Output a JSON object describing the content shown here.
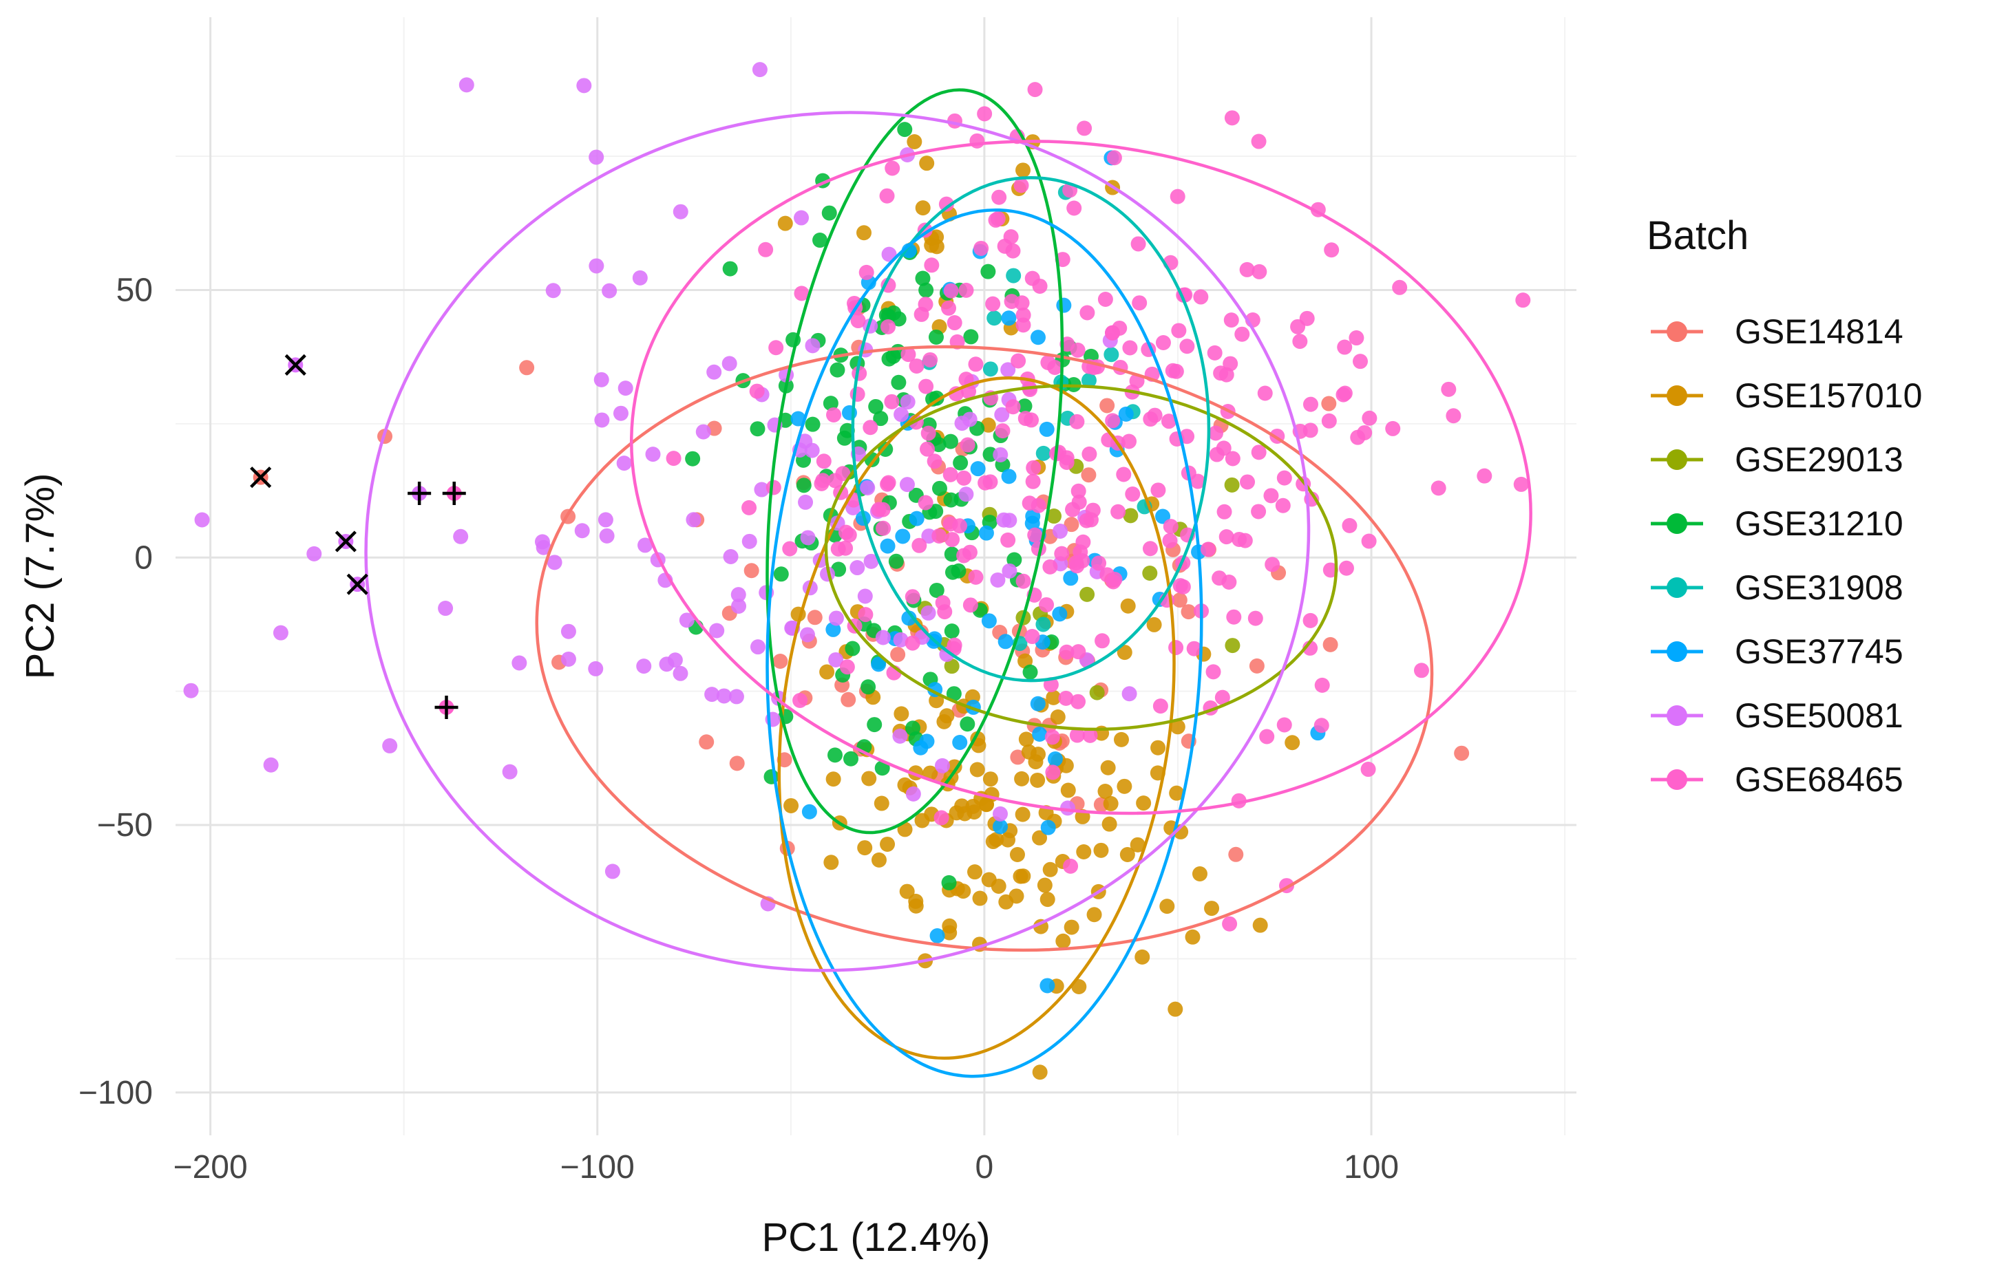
{
  "chart_data": {
    "type": "scatter",
    "title": "",
    "xlabel": "PC1 (12.4%)",
    "ylabel": "PC2 (7.7%)",
    "xlim": [
      -209,
      153
    ],
    "ylim": [
      -108,
      101
    ],
    "x_ticks": {
      "values": [
        -200,
        -100,
        0,
        100
      ],
      "labels": [
        "−200",
        "−100",
        "0",
        "100"
      ]
    },
    "y_ticks": {
      "values": [
        50,
        0,
        -50,
        -100
      ],
      "labels": [
        "50",
        "0",
        "−50",
        "−100"
      ]
    },
    "x_minor": [
      -150,
      -50,
      50,
      150
    ],
    "y_minor": [
      75,
      25,
      -25,
      -75
    ],
    "grid": true,
    "legend_title": "Batch",
    "legend_position": "right",
    "point_radius": 11,
    "point_opacity": 0.88,
    "ellipse_stroke_width": 4.5,
    "seed": 42,
    "series": [
      {
        "name": "GSE14814",
        "color": "#F8766D",
        "clusters": [
          {
            "n": 70,
            "mean": [
              -5,
              -8
            ],
            "sd": [
              52,
              28
            ]
          }
        ],
        "ellipse": {
          "cx": 0,
          "cy": -17,
          "rx": 116,
          "ry": 56,
          "angle": 6
        }
      },
      {
        "name": "GSE157010",
        "color": "#D49200",
        "clusters": [
          {
            "n": 135,
            "mean": [
              5,
              -45
            ],
            "sd": [
              28,
              17
            ]
          },
          {
            "n": 20,
            "mean": [
              -10,
              58
            ],
            "sd": [
              22,
              9
            ]
          },
          {
            "n": 12,
            "mean": [
              0,
              5
            ],
            "sd": [
              30,
              16
            ]
          }
        ],
        "ellipse": {
          "cx": -2,
          "cy": -30,
          "rx": 50,
          "ry": 64,
          "angle": 8
        }
      },
      {
        "name": "GSE29013",
        "color": "#93AA00",
        "clusters": [
          {
            "n": 15,
            "mean": [
              25,
              -2
            ],
            "sd": [
              30,
              15
            ]
          }
        ],
        "ellipse": {
          "cx": 25,
          "cy": 0,
          "rx": 66,
          "ry": 32,
          "angle": 4
        }
      },
      {
        "name": "GSE31210",
        "color": "#00BA38",
        "clusters": [
          {
            "n": 105,
            "mean": [
              -22,
              22
            ],
            "sd": [
              20,
              26
            ]
          },
          {
            "n": 15,
            "mean": [
              -30,
              -35
            ],
            "sd": [
              15,
              12
            ]
          }
        ],
        "ellipse": {
          "cx": -18,
          "cy": 18,
          "rx": 36,
          "ry": 70,
          "angle": 8
        }
      },
      {
        "name": "GSE31908",
        "color": "#00C0B4",
        "clusters": [
          {
            "n": 14,
            "mean": [
              12,
              28
            ],
            "sd": [
              22,
              17
            ]
          }
        ],
        "ellipse": {
          "cx": 12,
          "cy": 24,
          "rx": 46,
          "ry": 47,
          "angle": 0
        }
      },
      {
        "name": "GSE37745",
        "color": "#00A9FF",
        "clusters": [
          {
            "n": 58,
            "mean": [
              3,
              -5
            ],
            "sd": [
              27,
              34
            ]
          }
        ],
        "ellipse": {
          "cx": 0,
          "cy": -16,
          "rx": 56,
          "ry": 81,
          "angle": 2
        }
      },
      {
        "name": "GSE50081",
        "color": "#DB72FB",
        "clusters": [
          {
            "n": 125,
            "mean": [
              -55,
              8
            ],
            "sd": [
              48,
              30
            ]
          }
        ],
        "ellipse": {
          "cx": -38,
          "cy": 3,
          "rx": 122,
          "ry": 80,
          "angle": -8
        }
      },
      {
        "name": "GSE68465",
        "color": "#FF61CC",
        "clusters": [
          {
            "n": 300,
            "mean": [
              25,
              18
            ],
            "sd": [
              42,
              27
            ]
          }
        ],
        "ellipse": {
          "cx": 25,
          "cy": 15,
          "rx": 117,
          "ry": 62,
          "angle": 10
        }
      }
    ],
    "flagged_points": [
      {
        "x": -178,
        "y": 36,
        "series": "GSE50081",
        "marker": "x"
      },
      {
        "x": -187,
        "y": 15,
        "series": "GSE14814",
        "marker": "x"
      },
      {
        "x": -165,
        "y": 3,
        "series": "GSE50081",
        "marker": "x"
      },
      {
        "x": -162,
        "y": -5,
        "series": "GSE50081",
        "marker": "x"
      },
      {
        "x": -146,
        "y": 12,
        "series": "GSE50081",
        "marker": "plus"
      },
      {
        "x": -137,
        "y": 12,
        "series": "GSE68465",
        "marker": "plus"
      },
      {
        "x": -139,
        "y": -28,
        "series": "GSE68465",
        "marker": "plus"
      }
    ]
  },
  "styles": {
    "background": "#FFFFFF",
    "grid_major": "#E3E3E3",
    "grid_minor": "#F2F2F2",
    "axis_text": "#454545",
    "axis_title": "#111111",
    "legend_text": "#111111",
    "marker_stroke": "#000000"
  }
}
